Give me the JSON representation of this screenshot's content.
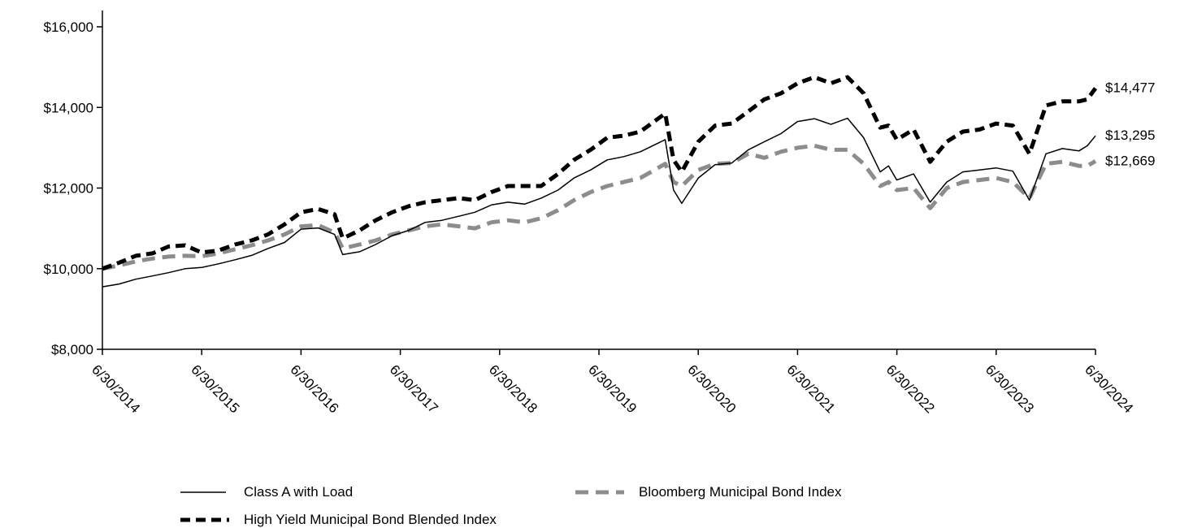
{
  "chart_data": {
    "type": "line",
    "title": "",
    "xlabel": "",
    "ylabel": "",
    "ylim": [
      8000,
      16000
    ],
    "yticks": [
      8000,
      10000,
      12000,
      14000,
      16000
    ],
    "ytick_labels": [
      "$8,000",
      "$10,000",
      "$12,000",
      "$14,000",
      "$16,000"
    ],
    "xtick_labels": [
      "6/30/2014",
      "6/30/2015",
      "6/30/2016",
      "6/30/2017",
      "6/30/2018",
      "6/30/2019",
      "6/30/2020",
      "6/30/2021",
      "6/30/2022",
      "6/30/2023",
      "6/30/2024"
    ],
    "legend_placement": "bottom",
    "grid": false,
    "series": [
      {
        "name": "Class A with Load",
        "style": "solid-thin",
        "color": "#000000",
        "end_label": "$13,295",
        "points": [
          [
            "2014-06-30",
            9550
          ],
          [
            "2014-08-31",
            9620
          ],
          [
            "2014-10-31",
            9740
          ],
          [
            "2014-12-31",
            9820
          ],
          [
            "2015-02-28",
            9900
          ],
          [
            "2015-04-30",
            10000
          ],
          [
            "2015-06-30",
            10030
          ],
          [
            "2015-08-31",
            10120
          ],
          [
            "2015-10-31",
            10220
          ],
          [
            "2015-12-31",
            10330
          ],
          [
            "2016-02-29",
            10500
          ],
          [
            "2016-04-30",
            10650
          ],
          [
            "2016-06-30",
            10980
          ],
          [
            "2016-08-31",
            11010
          ],
          [
            "2016-10-31",
            10850
          ],
          [
            "2016-11-30",
            10350
          ],
          [
            "2017-01-31",
            10420
          ],
          [
            "2017-03-31",
            10600
          ],
          [
            "2017-05-31",
            10820
          ],
          [
            "2017-07-31",
            10950
          ],
          [
            "2017-09-30",
            11150
          ],
          [
            "2017-11-30",
            11200
          ],
          [
            "2018-01-31",
            11300
          ],
          [
            "2018-03-31",
            11400
          ],
          [
            "2018-05-31",
            11580
          ],
          [
            "2018-07-31",
            11650
          ],
          [
            "2018-09-30",
            11600
          ],
          [
            "2018-11-30",
            11750
          ],
          [
            "2019-01-31",
            11950
          ],
          [
            "2019-03-31",
            12250
          ],
          [
            "2019-05-31",
            12450
          ],
          [
            "2019-07-31",
            12700
          ],
          [
            "2019-09-30",
            12780
          ],
          [
            "2019-11-30",
            12900
          ],
          [
            "2020-02-29",
            13200
          ],
          [
            "2020-03-31",
            11950
          ],
          [
            "2020-04-30",
            11620
          ],
          [
            "2020-06-30",
            12250
          ],
          [
            "2020-08-31",
            12580
          ],
          [
            "2020-10-31",
            12620
          ],
          [
            "2020-12-31",
            12950
          ],
          [
            "2021-02-28",
            13150
          ],
          [
            "2021-04-30",
            13350
          ],
          [
            "2021-06-30",
            13650
          ],
          [
            "2021-08-31",
            13720
          ],
          [
            "2021-10-31",
            13580
          ],
          [
            "2021-12-31",
            13730
          ],
          [
            "2022-02-28",
            13250
          ],
          [
            "2022-04-30",
            12400
          ],
          [
            "2022-05-31",
            12550
          ],
          [
            "2022-06-30",
            12200
          ],
          [
            "2022-08-31",
            12350
          ],
          [
            "2022-10-31",
            11650
          ],
          [
            "2022-12-31",
            12150
          ],
          [
            "2023-02-28",
            12400
          ],
          [
            "2023-04-30",
            12450
          ],
          [
            "2023-06-30",
            12500
          ],
          [
            "2023-08-31",
            12420
          ],
          [
            "2023-10-31",
            11700
          ],
          [
            "2023-12-31",
            12850
          ],
          [
            "2024-02-29",
            12980
          ],
          [
            "2024-04-30",
            12920
          ],
          [
            "2024-05-31",
            13050
          ],
          [
            "2024-06-30",
            13295
          ]
        ]
      },
      {
        "name": "Bloomberg Municipal Bond Index",
        "style": "dashed-gray",
        "color": "#8c8c8c",
        "end_label": "$12,669",
        "points": [
          [
            "2014-06-30",
            10000
          ],
          [
            "2014-08-31",
            10080
          ],
          [
            "2014-10-31",
            10180
          ],
          [
            "2014-12-31",
            10250
          ],
          [
            "2015-02-28",
            10300
          ],
          [
            "2015-04-30",
            10320
          ],
          [
            "2015-06-30",
            10310
          ],
          [
            "2015-08-31",
            10380
          ],
          [
            "2015-10-31",
            10480
          ],
          [
            "2015-12-31",
            10580
          ],
          [
            "2016-02-29",
            10700
          ],
          [
            "2016-04-30",
            10850
          ],
          [
            "2016-06-30",
            11050
          ],
          [
            "2016-08-31",
            11080
          ],
          [
            "2016-10-31",
            10900
          ],
          [
            "2016-11-30",
            10500
          ],
          [
            "2017-01-31",
            10600
          ],
          [
            "2017-03-31",
            10700
          ],
          [
            "2017-05-31",
            10850
          ],
          [
            "2017-07-31",
            10950
          ],
          [
            "2017-09-30",
            11050
          ],
          [
            "2017-11-30",
            11100
          ],
          [
            "2018-01-31",
            11050
          ],
          [
            "2018-03-31",
            11000
          ],
          [
            "2018-05-31",
            11150
          ],
          [
            "2018-07-31",
            11200
          ],
          [
            "2018-09-30",
            11150
          ],
          [
            "2018-11-30",
            11250
          ],
          [
            "2019-01-31",
            11450
          ],
          [
            "2019-03-31",
            11700
          ],
          [
            "2019-05-31",
            11900
          ],
          [
            "2019-07-31",
            12050
          ],
          [
            "2019-09-30",
            12150
          ],
          [
            "2019-11-30",
            12250
          ],
          [
            "2020-02-29",
            12600
          ],
          [
            "2020-03-31",
            12150
          ],
          [
            "2020-04-30",
            12050
          ],
          [
            "2020-06-30",
            12450
          ],
          [
            "2020-08-31",
            12600
          ],
          [
            "2020-10-31",
            12620
          ],
          [
            "2020-12-31",
            12850
          ],
          [
            "2021-02-28",
            12750
          ],
          [
            "2021-04-30",
            12900
          ],
          [
            "2021-06-30",
            13000
          ],
          [
            "2021-08-31",
            13050
          ],
          [
            "2021-10-31",
            12950
          ],
          [
            "2021-12-31",
            12950
          ],
          [
            "2022-02-28",
            12600
          ],
          [
            "2022-04-30",
            12050
          ],
          [
            "2022-05-31",
            12150
          ],
          [
            "2022-06-30",
            11950
          ],
          [
            "2022-08-31",
            12000
          ],
          [
            "2022-10-31",
            11500
          ],
          [
            "2022-12-31",
            12000
          ],
          [
            "2023-02-28",
            12150
          ],
          [
            "2023-04-30",
            12200
          ],
          [
            "2023-06-30",
            12250
          ],
          [
            "2023-08-31",
            12150
          ],
          [
            "2023-10-31",
            11750
          ],
          [
            "2023-12-31",
            12600
          ],
          [
            "2024-02-29",
            12650
          ],
          [
            "2024-04-30",
            12550
          ],
          [
            "2024-05-31",
            12550
          ],
          [
            "2024-06-30",
            12669
          ]
        ]
      },
      {
        "name": "High Yield Municipal Bond Blended Index",
        "style": "dashed-black-thick",
        "color": "#000000",
        "end_label": "$14,477",
        "points": [
          [
            "2014-06-30",
            10000
          ],
          [
            "2014-08-31",
            10150
          ],
          [
            "2014-10-31",
            10320
          ],
          [
            "2014-12-31",
            10380
          ],
          [
            "2015-02-28",
            10550
          ],
          [
            "2015-04-30",
            10580
          ],
          [
            "2015-06-30",
            10400
          ],
          [
            "2015-08-31",
            10450
          ],
          [
            "2015-10-31",
            10600
          ],
          [
            "2015-12-31",
            10700
          ],
          [
            "2016-02-29",
            10850
          ],
          [
            "2016-04-30",
            11100
          ],
          [
            "2016-06-30",
            11400
          ],
          [
            "2016-08-31",
            11480
          ],
          [
            "2016-10-31",
            11350
          ],
          [
            "2016-11-30",
            10750
          ],
          [
            "2017-01-31",
            10950
          ],
          [
            "2017-03-31",
            11200
          ],
          [
            "2017-05-31",
            11400
          ],
          [
            "2017-07-31",
            11550
          ],
          [
            "2017-09-30",
            11650
          ],
          [
            "2017-11-30",
            11700
          ],
          [
            "2018-01-31",
            11750
          ],
          [
            "2018-03-31",
            11700
          ],
          [
            "2018-05-31",
            11900
          ],
          [
            "2018-07-31",
            12050
          ],
          [
            "2018-09-30",
            12050
          ],
          [
            "2018-11-30",
            12050
          ],
          [
            "2019-01-31",
            12350
          ],
          [
            "2019-03-31",
            12700
          ],
          [
            "2019-05-31",
            12950
          ],
          [
            "2019-07-31",
            13250
          ],
          [
            "2019-09-30",
            13300
          ],
          [
            "2019-11-30",
            13400
          ],
          [
            "2020-02-29",
            13850
          ],
          [
            "2020-03-31",
            12700
          ],
          [
            "2020-04-30",
            12400
          ],
          [
            "2020-06-30",
            13150
          ],
          [
            "2020-08-31",
            13550
          ],
          [
            "2020-10-31",
            13600
          ],
          [
            "2020-12-31",
            13900
          ],
          [
            "2021-02-28",
            14200
          ],
          [
            "2021-04-30",
            14350
          ],
          [
            "2021-06-30",
            14600
          ],
          [
            "2021-08-31",
            14750
          ],
          [
            "2021-10-31",
            14600
          ],
          [
            "2021-12-31",
            14750
          ],
          [
            "2022-02-28",
            14350
          ],
          [
            "2022-04-30",
            13500
          ],
          [
            "2022-05-31",
            13550
          ],
          [
            "2022-06-30",
            13200
          ],
          [
            "2022-08-31",
            13450
          ],
          [
            "2022-10-31",
            12650
          ],
          [
            "2022-12-31",
            13150
          ],
          [
            "2023-02-28",
            13400
          ],
          [
            "2023-04-30",
            13450
          ],
          [
            "2023-06-30",
            13600
          ],
          [
            "2023-08-31",
            13550
          ],
          [
            "2023-10-31",
            12850
          ],
          [
            "2023-12-31",
            14050
          ],
          [
            "2024-02-29",
            14150
          ],
          [
            "2024-04-30",
            14150
          ],
          [
            "2024-05-31",
            14200
          ],
          [
            "2024-06-30",
            14477
          ]
        ]
      }
    ]
  },
  "legend": {
    "class_a": "Class A with Load",
    "bloomberg": "Bloomberg Municipal Bond Index",
    "high_yield": "High Yield Municipal Bond Blended Index"
  }
}
